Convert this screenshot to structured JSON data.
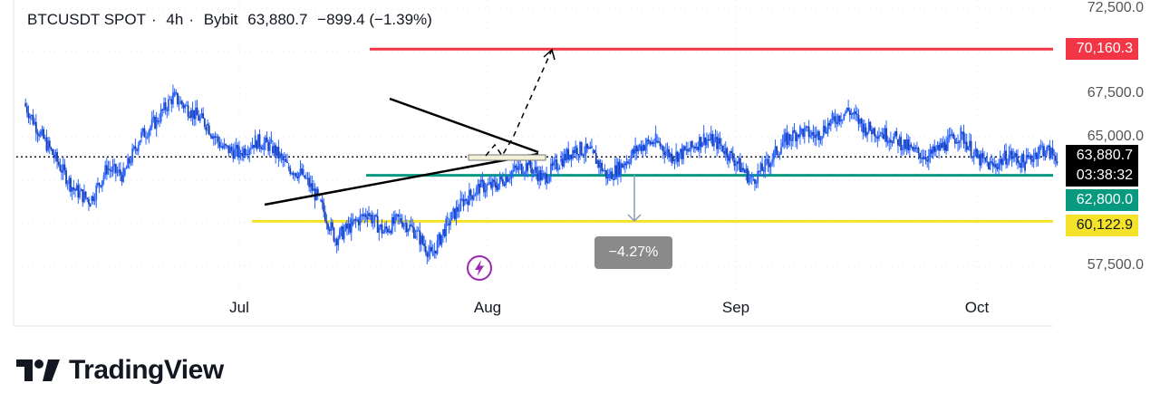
{
  "header": {
    "symbol": "BTCUSDT SPOT",
    "interval": "4h",
    "exchange": "Bybit",
    "price": "63,880.7",
    "change": "−899.4 (−1.39%)"
  },
  "price_axis": {
    "ticks": [
      "72,500.0",
      "67,500.0",
      "65,000.0",
      "57,500.0"
    ]
  },
  "badges": {
    "resistance": "70,160.3",
    "last_price": "63,880.7",
    "countdown": "03:38:32",
    "support": "62,800.0",
    "target": "60,122.9"
  },
  "measure_label": "−4.27%",
  "months": [
    "Jul",
    "Aug",
    "Sep",
    "Oct"
  ],
  "brand": "TradingView",
  "colors": {
    "candles": "#2962ff",
    "resistance": "#f23645",
    "support": "#089981",
    "target": "#f5e32a",
    "last_price_bg": "#000000",
    "measure_bg": "#8a8a8a",
    "bolt": "#9c27b0"
  },
  "chart_data": {
    "type": "line",
    "title": "",
    "xlabel": "",
    "ylabel": "",
    "x_ticks": [
      "Jul",
      "Aug",
      "Sep",
      "Oct"
    ],
    "y_ticks": [
      57500,
      65000,
      67500,
      72500
    ],
    "ylim": [
      55700,
      73000
    ],
    "grid": true,
    "series": [
      {
        "values": [
          [
            "Jun 5",
            67000
          ],
          [
            "Jun 7",
            65200
          ],
          [
            "Jun 9",
            63600
          ],
          [
            "Jun 11",
            62000
          ],
          [
            "Jun 13",
            61300
          ],
          [
            "Jun 15",
            63200
          ],
          [
            "Jun 17",
            62800
          ],
          [
            "Jun 19",
            65000
          ],
          [
            "Jun 21",
            66000
          ],
          [
            "Jun 23",
            67400
          ],
          [
            "Jun 25",
            66600
          ],
          [
            "Jun 27",
            65800
          ],
          [
            "Jun 29",
            64400
          ],
          [
            "Jul 1",
            64100
          ],
          [
            "Jul 3",
            64800
          ],
          [
            "Jul 5",
            64500
          ],
          [
            "Jul 7",
            63300
          ],
          [
            "Jul 9",
            62800
          ],
          [
            "Jul 11",
            61300
          ],
          [
            "Jul 13",
            59100
          ],
          [
            "Jul 15",
            59900
          ],
          [
            "Jul 17",
            60600
          ],
          [
            "Jul 19",
            59500
          ],
          [
            "Jul 21",
            60300
          ],
          [
            "Jul 23",
            59500
          ],
          [
            "Jul 25",
            58100
          ],
          [
            "Jul 27",
            60000
          ],
          [
            "Jul 29",
            61300
          ],
          [
            "Jul 31",
            62100
          ],
          [
            "Aug 2",
            62200
          ],
          [
            "Aug 4",
            63000
          ],
          [
            "Aug 6",
            63400
          ],
          [
            "Aug 8",
            62600
          ],
          [
            "Aug 10",
            63600
          ],
          [
            "Aug 12",
            64400
          ],
          [
            "Aug 14",
            64100
          ],
          [
            "Aug 16",
            62700
          ],
          [
            "Aug 18",
            63500
          ],
          [
            "Aug 20",
            64500
          ],
          [
            "Aug 22",
            64800
          ],
          [
            "Aug 24",
            63900
          ],
          [
            "Aug 26",
            64200
          ],
          [
            "Aug 28",
            65000
          ],
          [
            "Aug 30",
            64600
          ],
          [
            "Sep 1",
            63600
          ],
          [
            "Sep 3",
            62500
          ],
          [
            "Sep 5",
            63500
          ],
          [
            "Sep 7",
            64800
          ],
          [
            "Sep 9",
            65400
          ],
          [
            "Sep 11",
            65100
          ],
          [
            "Sep 13",
            66000
          ],
          [
            "Sep 15",
            66600
          ],
          [
            "Sep 17",
            65600
          ],
          [
            "Sep 19",
            65300
          ],
          [
            "Sep 21",
            64900
          ],
          [
            "Sep 23",
            64200
          ],
          [
            "Sep 25",
            63900
          ],
          [
            "Sep 27",
            64600
          ],
          [
            "Sep 29",
            65200
          ],
          [
            "Oct 1",
            63800
          ],
          [
            "Oct 3",
            63300
          ],
          [
            "Oct 5",
            64000
          ],
          [
            "Oct 7",
            63500
          ],
          [
            "Oct 9",
            64400
          ],
          [
            "Oct 11",
            63881
          ]
        ]
      }
    ],
    "levels": [
      {
        "price": 70160.3,
        "color": "#f23645"
      },
      {
        "price": 63880.7,
        "color": "#000000",
        "style": "dotted"
      },
      {
        "price": 62800.0,
        "color": "#089981"
      },
      {
        "price": 60122.9,
        "color": "#f5e32a"
      }
    ]
  }
}
